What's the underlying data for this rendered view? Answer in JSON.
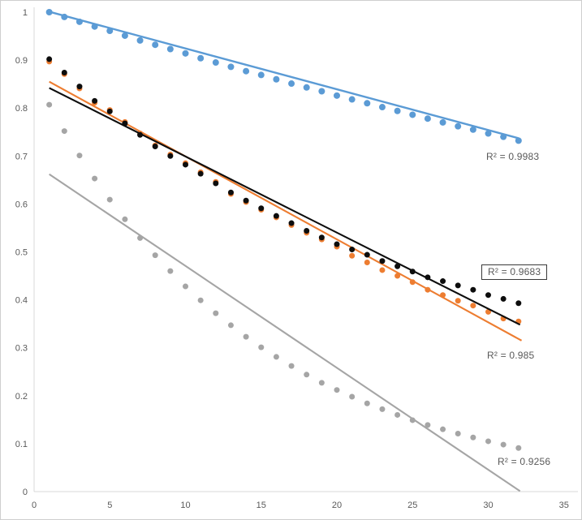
{
  "chart_data": {
    "type": "scatter",
    "title": "",
    "xlabel": "",
    "ylabel": "",
    "xlim": [
      0,
      35
    ],
    "ylim": [
      0,
      1
    ],
    "grid": false,
    "legend": "none",
    "axis_color": "#d9d9d9",
    "tick_label_color": "#595959",
    "x_ticks": [
      "0",
      "5",
      "10",
      "15",
      "20",
      "25",
      "30",
      "35"
    ],
    "x_tick_values": [
      0,
      5,
      10,
      15,
      20,
      25,
      30,
      35
    ],
    "y_ticks": [
      "0",
      "0.1",
      "0.2",
      "0.3",
      "0.4",
      "0.5",
      "0.6",
      "0.7",
      "0.8",
      "0.9",
      "1"
    ],
    "y_tick_values": [
      0,
      0.1,
      0.2,
      0.3,
      0.4,
      0.5,
      0.6,
      0.7,
      0.8,
      0.9,
      1
    ],
    "x": [
      1,
      2,
      3,
      4,
      5,
      6,
      7,
      8,
      9,
      10,
      11,
      12,
      13,
      14,
      15,
      16,
      17,
      18,
      19,
      20,
      21,
      22,
      23,
      24,
      25,
      26,
      27,
      28,
      29,
      30,
      31,
      32
    ],
    "series": [
      {
        "name": "gray",
        "color": "#a5a5a5",
        "values": [
          0.807,
          0.752,
          0.701,
          0.653,
          0.609,
          0.568,
          0.529,
          0.493,
          0.46,
          0.428,
          0.399,
          0.372,
          0.347,
          0.323,
          0.301,
          0.281,
          0.262,
          0.244,
          0.227,
          0.212,
          0.198,
          0.184,
          0.172,
          0.16,
          0.149,
          0.139,
          0.13,
          0.121,
          0.113,
          0.105,
          0.098,
          0.091
        ],
        "trendline": {
          "x1": 1,
          "y1": 0.662,
          "x2": 32.1,
          "y2": 0.001
        },
        "r_squared": 0.9256
      },
      {
        "name": "orange",
        "color": "#ed7d31",
        "values": [
          0.897,
          0.871,
          0.841,
          0.811,
          0.796,
          0.771,
          0.747,
          0.722,
          0.703,
          0.685,
          0.666,
          0.646,
          0.621,
          0.604,
          0.588,
          0.572,
          0.556,
          0.54,
          0.526,
          0.511,
          0.492,
          0.478,
          0.462,
          0.45,
          0.437,
          0.421,
          0.41,
          0.398,
          0.388,
          0.375,
          0.361,
          0.355
        ],
        "trendline": {
          "x1": 1,
          "y1": 0.855,
          "x2": 32.2,
          "y2": 0.315
        },
        "r_squared": 0.985
      },
      {
        "name": "black",
        "color": "#0d0d0d",
        "values": [
          0.902,
          0.874,
          0.845,
          0.815,
          0.793,
          0.768,
          0.744,
          0.72,
          0.7,
          0.682,
          0.663,
          0.643,
          0.624,
          0.607,
          0.591,
          0.575,
          0.56,
          0.544,
          0.53,
          0.516,
          0.505,
          0.494,
          0.481,
          0.47,
          0.459,
          0.447,
          0.439,
          0.43,
          0.421,
          0.41,
          0.402,
          0.393
        ],
        "trendline": {
          "x1": 1,
          "y1": 0.842,
          "x2": 32.1,
          "y2": 0.348
        },
        "r_squared": 0.9683
      },
      {
        "name": "blue",
        "color": "#5b9bd5",
        "values": [
          1.0,
          0.99,
          0.98,
          0.97,
          0.961,
          0.951,
          0.941,
          0.932,
          0.923,
          0.914,
          0.904,
          0.895,
          0.886,
          0.877,
          0.869,
          0.86,
          0.851,
          0.843,
          0.835,
          0.826,
          0.818,
          0.81,
          0.802,
          0.794,
          0.786,
          0.778,
          0.77,
          0.762,
          0.755,
          0.747,
          0.74,
          0.732
        ],
        "trendline": {
          "x1": 1,
          "y1": 1.001,
          "x2": 32,
          "y2": 0.737
        },
        "r_squared": 0.9983
      }
    ],
    "annotations": [
      {
        "series": "blue",
        "text": "R² = 0.9983",
        "boxed": false
      },
      {
        "series": "black",
        "text": "R² = 0.9683",
        "boxed": true
      },
      {
        "series": "orange",
        "text": "R² = 0.985",
        "boxed": false
      },
      {
        "series": "gray",
        "text": "R² = 0.9256",
        "boxed": false
      }
    ]
  }
}
